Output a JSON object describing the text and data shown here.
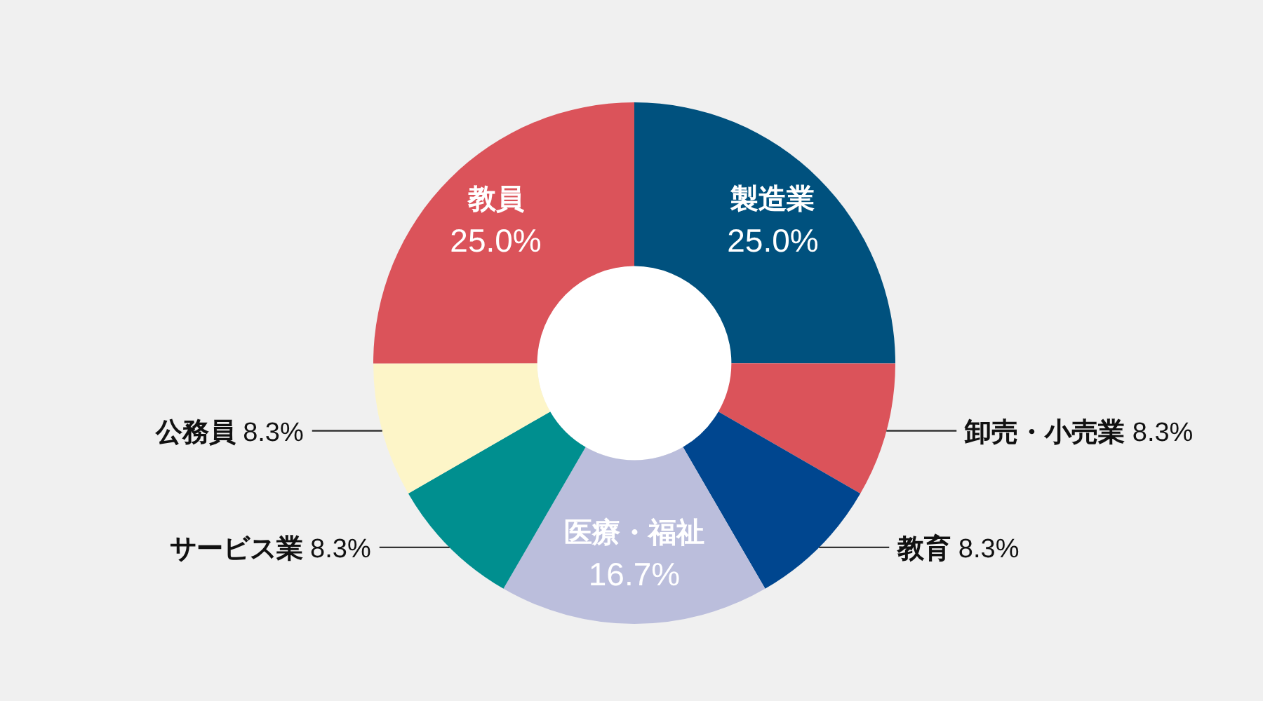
{
  "chart_data": {
    "type": "donut",
    "categories": [
      "製造業",
      "卸売・小売業",
      "教育",
      "医療・福祉",
      "サービス業",
      "公務員",
      "教員"
    ],
    "values": [
      25.0,
      8.3,
      8.3,
      16.7,
      8.3,
      8.3,
      25.0
    ],
    "value_labels": [
      "25.0%",
      "8.3%",
      "8.3%",
      "16.7%",
      "8.3%",
      "8.3%",
      "25.0%"
    ],
    "colors": [
      "#00517e",
      "#db535a",
      "#00468f",
      "#bbbedc",
      "#008f8f",
      "#fdf5c8",
      "#db535a"
    ]
  }
}
